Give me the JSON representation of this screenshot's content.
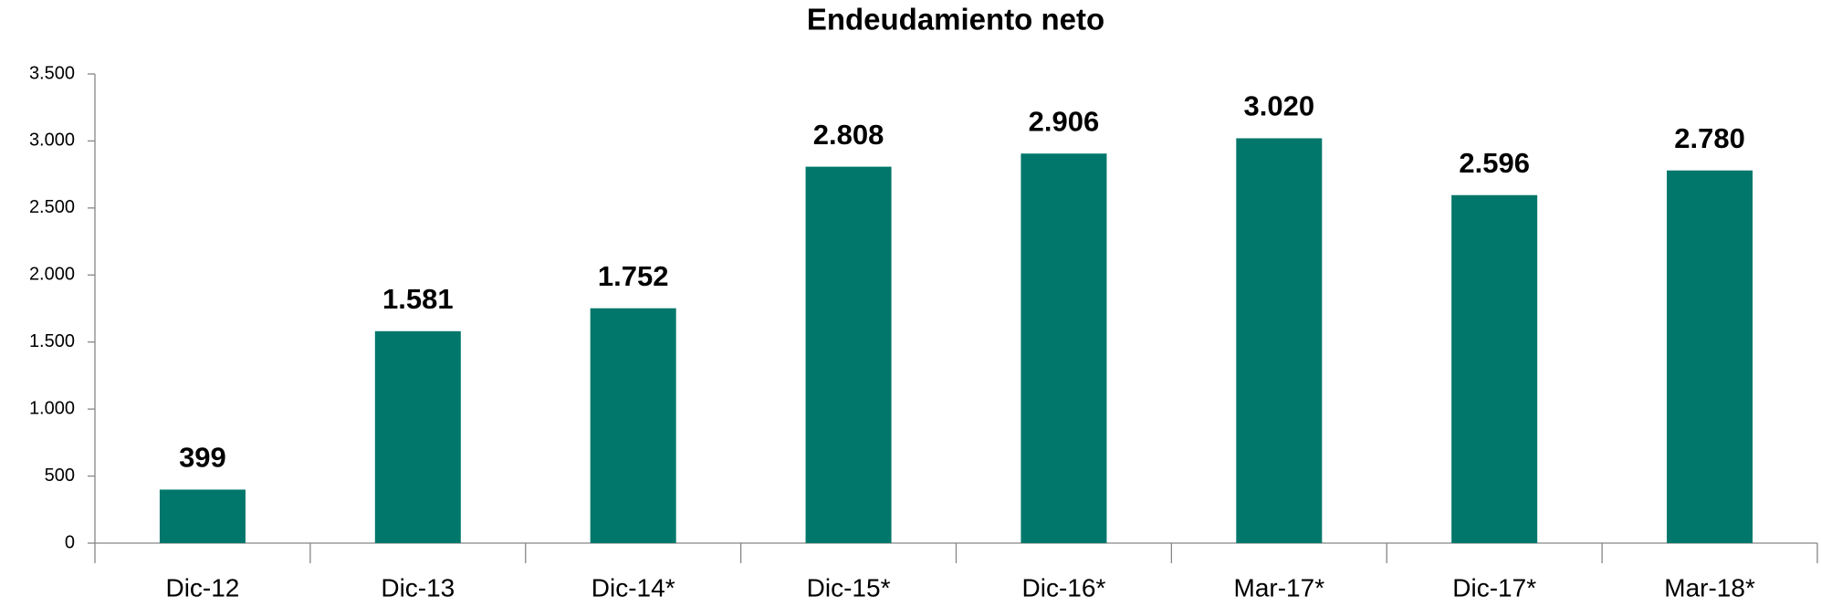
{
  "chart_data": {
    "type": "bar",
    "title": "Endeudamiento neto",
    "categories": [
      "Dic-12",
      "Dic-13",
      "Dic-14*",
      "Dic-15*",
      "Dic-16*",
      "Mar-17*",
      "Dic-17*",
      "Mar-18*"
    ],
    "values": [
      399,
      1581,
      1752,
      2808,
      2906,
      3020,
      2596,
      2780
    ],
    "value_labels": [
      "399",
      "1.581",
      "1.752",
      "2.808",
      "2.906",
      "3.020",
      "2.596",
      "2.780"
    ],
    "color": "#00776a",
    "ylim": [
      0,
      3500
    ],
    "yticks": [
      0,
      500,
      {
        "value": 1000,
        "label": "1.000"
      },
      {
        "value": 1500,
        "label": "1.500"
      },
      {
        "value": 2000,
        "label": "2.000"
      },
      {
        "value": 2500,
        "label": "2.500"
      },
      {
        "value": 3000,
        "label": "3.000"
      },
      {
        "value": 3500,
        "label": "3.500"
      }
    ],
    "grid": false
  }
}
